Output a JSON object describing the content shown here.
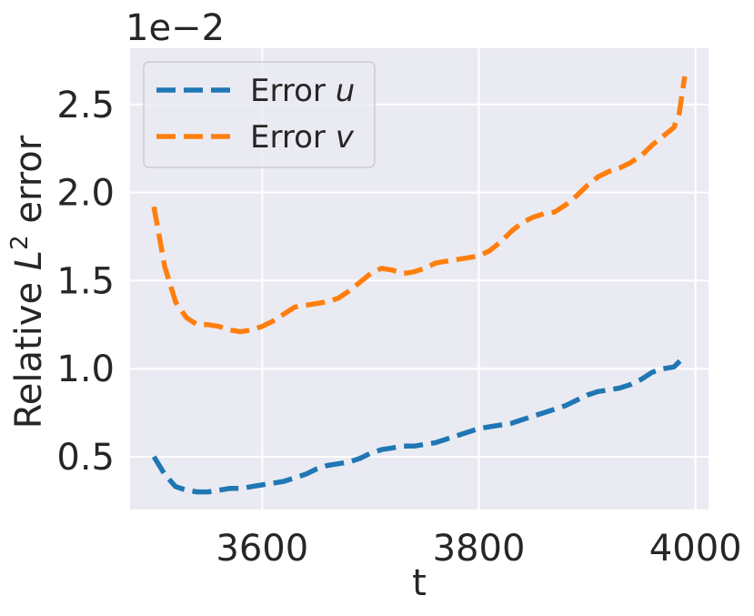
{
  "chart_data": {
    "type": "line",
    "title": "",
    "xlabel": "t",
    "ylabel_prefix": "Relative ",
    "ylabel_symbol": "L",
    "ylabel_superscript": "2",
    "ylabel_suffix": " error",
    "y_offset_label": "1e−2",
    "xlim": [
      3478,
      4012
    ],
    "ylim": [
      0.2,
      2.82
    ],
    "x_ticks": [
      3600,
      3800,
      4000
    ],
    "x_tick_labels": [
      "3600",
      "3800",
      "4000"
    ],
    "y_ticks": [
      0.5,
      1.0,
      1.5,
      2.0,
      2.5
    ],
    "y_tick_labels": [
      "0.5",
      "1.0",
      "1.5",
      "2.0",
      "2.5"
    ],
    "grid": true,
    "legend_position": "top-left",
    "series": [
      {
        "name_prefix": "Error ",
        "name_symbol": "u",
        "color": "#1f77b4",
        "x": [
          3500,
          3510,
          3520,
          3530,
          3540,
          3550,
          3560,
          3570,
          3580,
          3590,
          3600,
          3610,
          3620,
          3630,
          3640,
          3650,
          3660,
          3670,
          3680,
          3690,
          3700,
          3710,
          3720,
          3730,
          3740,
          3750,
          3760,
          3770,
          3780,
          3790,
          3800,
          3810,
          3820,
          3830,
          3840,
          3850,
          3860,
          3870,
          3880,
          3890,
          3900,
          3910,
          3920,
          3930,
          3940,
          3950,
          3960,
          3970,
          3980,
          3990
        ],
        "y": [
          0.5,
          0.4,
          0.33,
          0.31,
          0.3,
          0.3,
          0.31,
          0.32,
          0.32,
          0.33,
          0.34,
          0.35,
          0.36,
          0.38,
          0.4,
          0.43,
          0.45,
          0.46,
          0.47,
          0.49,
          0.52,
          0.54,
          0.55,
          0.56,
          0.56,
          0.57,
          0.58,
          0.6,
          0.62,
          0.64,
          0.66,
          0.67,
          0.68,
          0.69,
          0.71,
          0.73,
          0.75,
          0.77,
          0.79,
          0.82,
          0.85,
          0.87,
          0.88,
          0.89,
          0.91,
          0.94,
          0.98,
          1.0,
          1.01,
          1.07
        ]
      },
      {
        "name_prefix": "Error ",
        "name_symbol": "v",
        "color": "#ff7f0e",
        "x": [
          3500,
          3505,
          3510,
          3520,
          3530,
          3540,
          3550,
          3560,
          3570,
          3580,
          3590,
          3600,
          3610,
          3620,
          3630,
          3640,
          3650,
          3660,
          3670,
          3680,
          3690,
          3700,
          3710,
          3720,
          3730,
          3740,
          3750,
          3760,
          3770,
          3780,
          3790,
          3800,
          3810,
          3820,
          3830,
          3840,
          3850,
          3860,
          3870,
          3880,
          3890,
          3900,
          3910,
          3920,
          3930,
          3940,
          3950,
          3960,
          3970,
          3980,
          3985,
          3990
        ],
        "y": [
          1.92,
          1.75,
          1.58,
          1.38,
          1.29,
          1.25,
          1.25,
          1.24,
          1.22,
          1.21,
          1.22,
          1.24,
          1.27,
          1.31,
          1.35,
          1.36,
          1.37,
          1.38,
          1.4,
          1.44,
          1.49,
          1.54,
          1.57,
          1.56,
          1.54,
          1.55,
          1.57,
          1.6,
          1.61,
          1.62,
          1.63,
          1.64,
          1.67,
          1.72,
          1.78,
          1.83,
          1.86,
          1.88,
          1.89,
          1.93,
          1.98,
          2.04,
          2.09,
          2.12,
          2.14,
          2.17,
          2.21,
          2.27,
          2.32,
          2.37,
          2.45,
          2.66
        ]
      }
    ]
  }
}
